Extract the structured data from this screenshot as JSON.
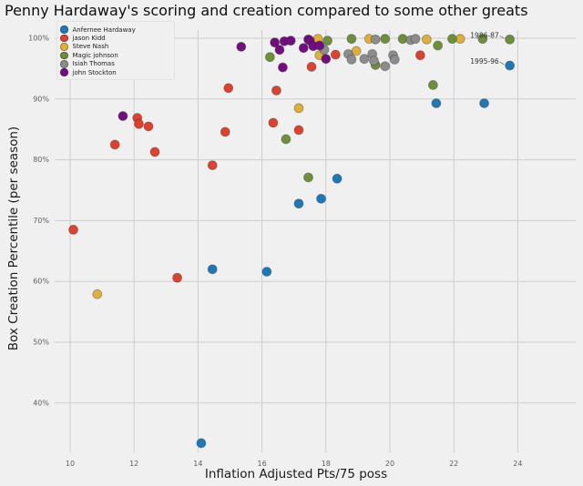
{
  "chart_data": {
    "type": "scatter",
    "title": "Penny Hardaway's scoring and creation compared to some other greats",
    "xlabel": "Inflation Adjusted Pts/75 poss",
    "ylabel": "Box Creation Percentile (per season)",
    "x_ticks": [
      10,
      12,
      14,
      16,
      18,
      20,
      22,
      24
    ],
    "y_ticks": [
      40,
      50,
      60,
      70,
      80,
      90,
      100
    ],
    "y_tick_suffix": "%",
    "xlim": [
      9.5,
      25.9
    ],
    "ylim": [
      31.5,
      101.5
    ],
    "grid": true,
    "legend_position": "upper-left",
    "background_color": "#f0f0f0",
    "gridline_color": "#cdcdcd",
    "series": [
      {
        "name": "Anfernee Hardaway",
        "color": "#1f77b4",
        "points": [
          [
            14.1,
            33.4
          ],
          [
            14.45,
            62.0
          ],
          [
            16.15,
            61.6
          ],
          [
            17.15,
            72.8
          ],
          [
            17.85,
            73.6
          ],
          [
            18.35,
            76.9
          ],
          [
            21.45,
            89.3
          ],
          [
            22.95,
            89.3
          ],
          [
            23.75,
            95.5
          ]
        ]
      },
      {
        "name": "jason Kidd",
        "color": "#d9432f",
        "points": [
          [
            10.1,
            68.5
          ],
          [
            11.4,
            82.5
          ],
          [
            12.1,
            86.9
          ],
          [
            12.15,
            85.9
          ],
          [
            12.45,
            85.5
          ],
          [
            12.65,
            81.3
          ],
          [
            13.35,
            60.6
          ],
          [
            14.45,
            79.1
          ],
          [
            14.85,
            84.6
          ],
          [
            14.95,
            91.8
          ],
          [
            16.35,
            86.1
          ],
          [
            16.45,
            91.4
          ],
          [
            17.15,
            84.9
          ],
          [
            17.55,
            95.3
          ],
          [
            18.3,
            97.3
          ],
          [
            20.95,
            97.2
          ]
        ]
      },
      {
        "name": "Steve Nash",
        "color": "#ddaf3d",
        "points": [
          [
            10.85,
            57.9
          ],
          [
            17.15,
            88.5
          ],
          [
            17.75,
            99.9
          ],
          [
            17.8,
            97.2
          ],
          [
            18.95,
            97.9
          ],
          [
            19.35,
            99.9
          ],
          [
            21.15,
            99.8
          ],
          [
            22.2,
            99.9
          ]
        ]
      },
      {
        "name": "Magic johnson",
        "color": "#6d8f3d",
        "points": [
          [
            16.25,
            96.9
          ],
          [
            16.75,
            83.4
          ],
          [
            17.45,
            77.1
          ],
          [
            18.05,
            99.6
          ],
          [
            18.8,
            99.9
          ],
          [
            19.55,
            95.6
          ],
          [
            19.85,
            99.9
          ],
          [
            20.4,
            99.9
          ],
          [
            21.35,
            92.3
          ],
          [
            21.5,
            98.8
          ],
          [
            21.95,
            99.9
          ],
          [
            22.9,
            99.9
          ],
          [
            23.75,
            99.8
          ]
        ]
      },
      {
        "name": "Isiah Thomas",
        "color": "#8c8c8c",
        "points": [
          [
            17.95,
            98.1
          ],
          [
            18.7,
            97.4
          ],
          [
            18.8,
            96.5
          ],
          [
            19.2,
            96.6
          ],
          [
            19.45,
            97.4
          ],
          [
            19.5,
            96.3
          ],
          [
            19.55,
            99.8
          ],
          [
            19.85,
            95.4
          ],
          [
            20.1,
            97.2
          ],
          [
            20.15,
            96.5
          ],
          [
            20.65,
            99.7
          ],
          [
            20.8,
            99.9
          ]
        ]
      },
      {
        "name": "john Stockton",
        "color": "#720f7e",
        "points": [
          [
            11.65,
            87.2
          ],
          [
            12.45,
            94.0
          ],
          [
            15.35,
            98.6
          ],
          [
            16.4,
            99.3
          ],
          [
            16.55,
            98.1
          ],
          [
            16.65,
            95.2
          ],
          [
            16.7,
            99.5
          ],
          [
            16.9,
            99.6
          ],
          [
            17.3,
            98.4
          ],
          [
            17.45,
            99.8
          ],
          [
            17.5,
            99.6
          ],
          [
            17.6,
            98.7
          ],
          [
            17.8,
            98.8
          ],
          [
            18.0,
            96.6
          ]
        ]
      }
    ],
    "annotations": [
      {
        "text": "1986-87",
        "x": 23.75,
        "y": 99.8
      },
      {
        "text": "1995-96",
        "x": 23.75,
        "y": 95.5
      }
    ]
  }
}
